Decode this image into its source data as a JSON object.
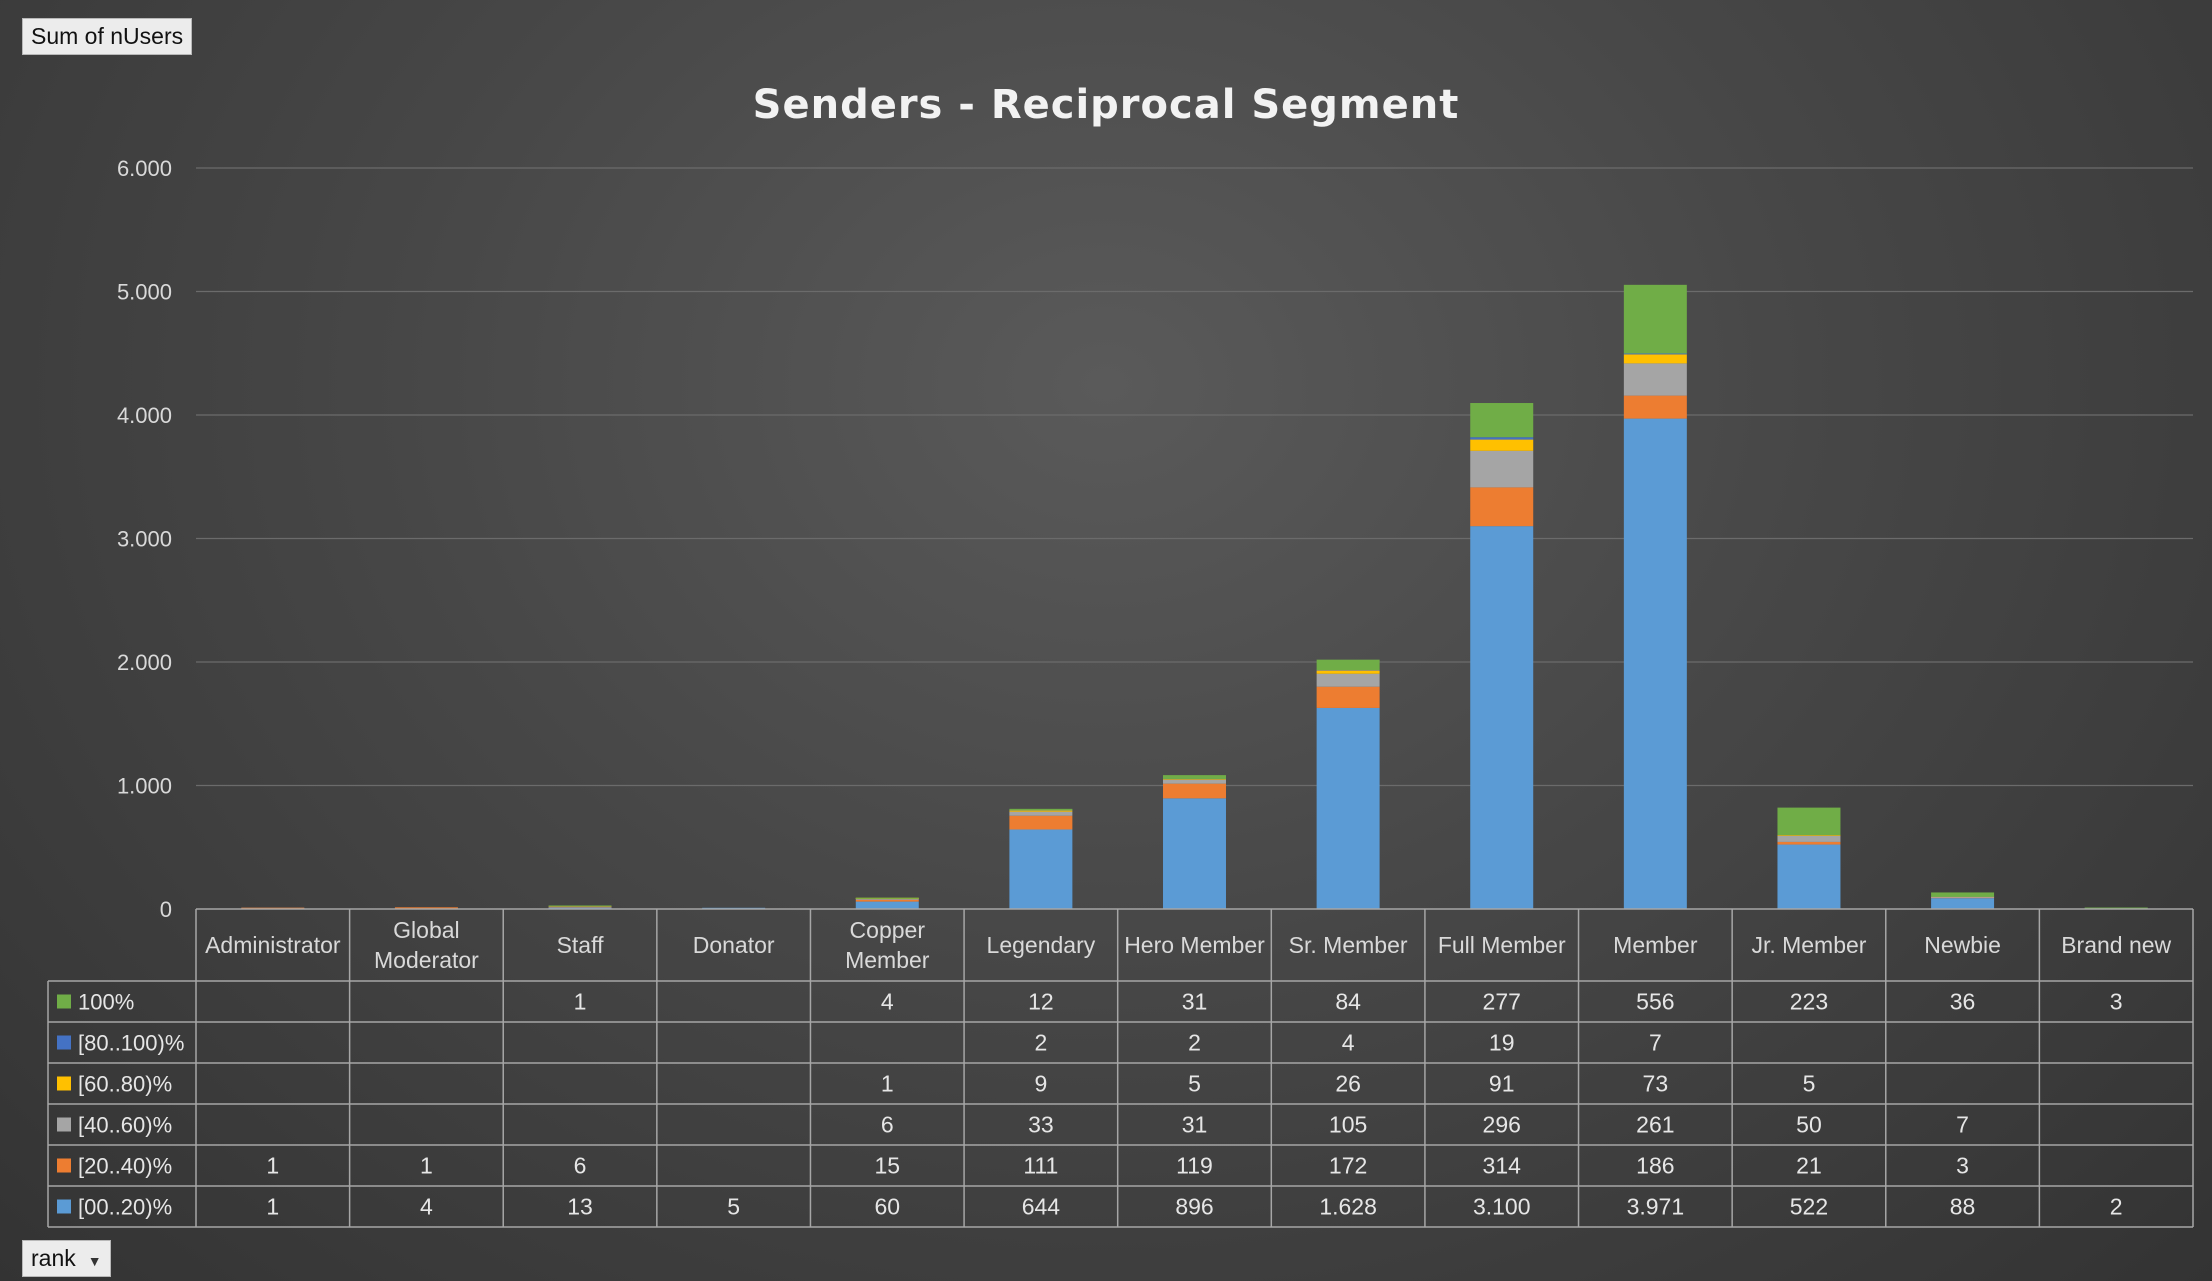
{
  "pivot": {
    "value_field": "Sum of nUsers",
    "axis_field": "rank"
  },
  "chart_data": {
    "type": "bar",
    "stacked": true,
    "title": "Senders - Reciprocal Segment",
    "xlabel": "",
    "ylabel": "",
    "ylim": [
      0,
      6000
    ],
    "yticks": [
      0,
      1000,
      2000,
      3000,
      4000,
      5000,
      6000
    ],
    "ytick_labels": [
      "0",
      "1.000",
      "2.000",
      "3.000",
      "4.000",
      "5.000",
      "6.000"
    ],
    "grid": true,
    "legend": "data-table",
    "categories": [
      [
        "Administrator"
      ],
      [
        "Global",
        "Moderator"
      ],
      [
        "Staff"
      ],
      [
        "Donator"
      ],
      [
        "Copper",
        "Member"
      ],
      [
        "Legendary"
      ],
      [
        "Hero Member"
      ],
      [
        "Sr. Member"
      ],
      [
        "Full Member"
      ],
      [
        "Member"
      ],
      [
        "Jr. Member"
      ],
      [
        "Newbie"
      ],
      [
        "Brand new"
      ]
    ],
    "series": [
      {
        "name": "[00..20)%",
        "color": "#5b9bd5",
        "values": [
          1,
          4,
          13,
          5,
          60,
          644,
          896,
          1628,
          3100,
          3971,
          522,
          88,
          2
        ],
        "labels": [
          "1",
          "4",
          "13",
          "5",
          "60",
          "644",
          "896",
          "1.628",
          "3.100",
          "3.971",
          "522",
          "88",
          "2"
        ]
      },
      {
        "name": "[20..40)%",
        "color": "#ed7d31",
        "values": [
          1,
          1,
          6,
          null,
          15,
          111,
          119,
          172,
          314,
          186,
          21,
          3,
          null
        ],
        "labels": [
          "1",
          "1",
          "6",
          "",
          "15",
          "111",
          "119",
          "172",
          "314",
          "186",
          "21",
          "3",
          ""
        ]
      },
      {
        "name": "[40..60)%",
        "color": "#a5a5a5",
        "values": [
          null,
          null,
          null,
          null,
          6,
          33,
          31,
          105,
          296,
          261,
          50,
          7,
          null
        ],
        "labels": [
          "",
          "",
          "",
          "",
          "6",
          "33",
          "31",
          "105",
          "296",
          "261",
          "50",
          "7",
          ""
        ]
      },
      {
        "name": "[60..80)%",
        "color": "#ffc000",
        "values": [
          null,
          null,
          null,
          null,
          1,
          9,
          5,
          26,
          91,
          73,
          5,
          null,
          null
        ],
        "labels": [
          "",
          "",
          "",
          "",
          "1",
          "9",
          "5",
          "26",
          "91",
          "73",
          "5",
          "",
          ""
        ]
      },
      {
        "name": "[80..100)%",
        "color": "#4472c4",
        "values": [
          null,
          null,
          null,
          null,
          null,
          2,
          2,
          4,
          19,
          7,
          null,
          null,
          null
        ],
        "labels": [
          "",
          "",
          "",
          "",
          "",
          "2",
          "2",
          "4",
          "19",
          "7",
          "",
          "",
          ""
        ]
      },
      {
        "name": "100%",
        "color": "#70ad47",
        "values": [
          null,
          null,
          1,
          null,
          4,
          12,
          31,
          84,
          277,
          556,
          223,
          36,
          3
        ],
        "labels": [
          "",
          "",
          "1",
          "",
          "4",
          "12",
          "31",
          "84",
          "277",
          "556",
          "223",
          "36",
          "3"
        ]
      }
    ]
  }
}
